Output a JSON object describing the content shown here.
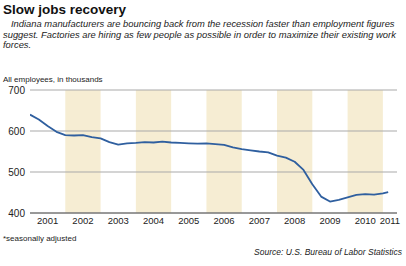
{
  "chart_data": {
    "type": "line",
    "title": "Slow jobs recovery",
    "subtitle": "Indiana manufacturers are bouncing back from the recession faster than employment figures suggest. Factories are hiring as few people as possible in order to maximize their existing work forces.",
    "y_label": "All employees, in thousands",
    "note": "*seasonally adjusted",
    "source": "Source: U.S. Bureau of Labor Statistics",
    "x": [
      2001.0,
      2001.25,
      2001.5,
      2001.75,
      2002.0,
      2002.25,
      2002.5,
      2002.75,
      2003.0,
      2003.25,
      2003.5,
      2003.75,
      2004.0,
      2004.25,
      2004.5,
      2004.75,
      2005.0,
      2005.25,
      2005.5,
      2005.75,
      2006.0,
      2006.25,
      2006.5,
      2006.75,
      2007.0,
      2007.25,
      2007.5,
      2007.75,
      2008.0,
      2008.25,
      2008.5,
      2008.75,
      2009.0,
      2009.25,
      2009.5,
      2009.75,
      2010.0,
      2010.25,
      2010.5,
      2010.75,
      2011.0,
      2011.15
    ],
    "values": [
      640,
      628,
      612,
      598,
      590,
      589,
      590,
      585,
      582,
      573,
      567,
      570,
      571,
      573,
      572,
      574,
      572,
      571,
      570,
      569,
      570,
      568,
      566,
      560,
      556,
      553,
      550,
      548,
      540,
      535,
      525,
      505,
      470,
      440,
      428,
      432,
      438,
      444,
      446,
      445,
      448,
      451
    ],
    "color": "#2f5f9f",
    "xlim": [
      2001,
      2011.4
    ],
    "xticks": [
      {
        "value": 2001.5,
        "label": "2001"
      },
      {
        "value": 2002.5,
        "label": "2002"
      },
      {
        "value": 2003.5,
        "label": "2003"
      },
      {
        "value": 2004.5,
        "label": "2004"
      },
      {
        "value": 2005.5,
        "label": "2005"
      },
      {
        "value": 2006.5,
        "label": "2006"
      },
      {
        "value": 2007.5,
        "label": "2007"
      },
      {
        "value": 2008.5,
        "label": "2008"
      },
      {
        "value": 2009.5,
        "label": "2009"
      },
      {
        "value": 2010.5,
        "label": "2010"
      },
      {
        "value": 2011.2,
        "label": "2011"
      }
    ],
    "ylim": [
      400,
      700
    ],
    "yticks": [
      400,
      500,
      600,
      700
    ],
    "grid": true
  }
}
